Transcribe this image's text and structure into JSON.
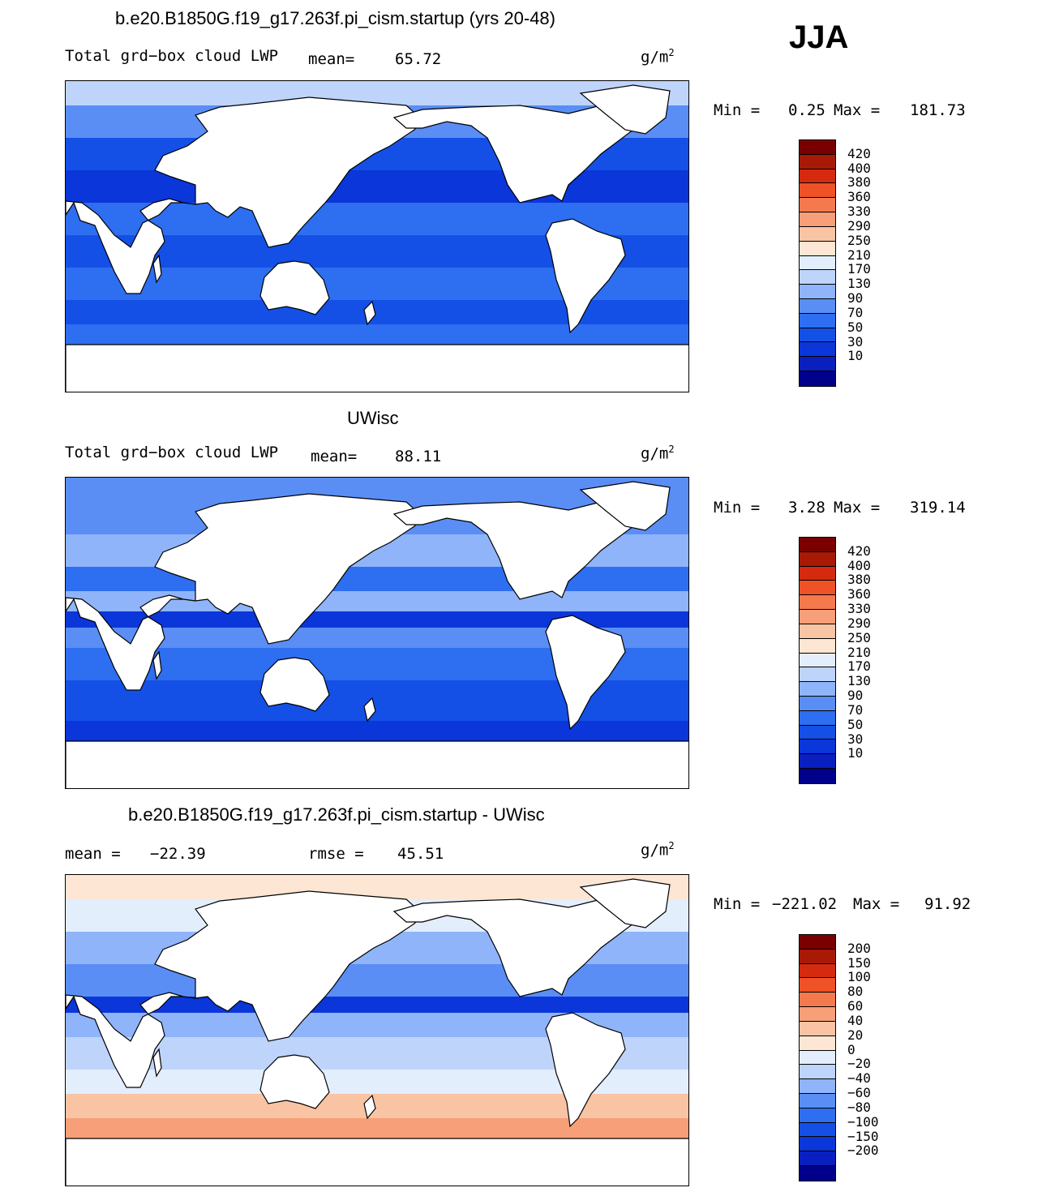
{
  "season": "JJA",
  "colors": {
    "land": "#ffffff",
    "coast": "#000000",
    "abs_scale": [
      "#00008b",
      "#0a1fbf",
      "#0b36d9",
      "#1450e6",
      "#2e6ef0",
      "#5a8ef5",
      "#8fb4fa",
      "#bed4fb",
      "#e3eefc",
      "#fde6d3",
      "#f9c4a4",
      "#f79f78",
      "#f47a4e",
      "#ee5226",
      "#d52a10",
      "#a81a06",
      "#7a0000"
    ],
    "diff_scale": [
      "#00008b",
      "#0a1fbf",
      "#0b36d9",
      "#1450e6",
      "#2e6ef0",
      "#5a8ef5",
      "#8fb4fa",
      "#bed4fb",
      "#e3eefc",
      "#fde6d3",
      "#f9c4a4",
      "#f79f78",
      "#f47a4e",
      "#ee5226",
      "#d52a10",
      "#a81a06",
      "#7a0000"
    ]
  },
  "panels": [
    {
      "title": "b.e20.B1850G.f19_g17.263f.pi_cism.startup (yrs 20-48)",
      "field": "Total grd−box cloud LWP",
      "mean_label": "mean=",
      "mean_value": "65.72",
      "units": "g/m",
      "units_sup": "2",
      "min_label": "Min =",
      "min_value": "0.25",
      "max_label": "Max =",
      "max_value": "181.73",
      "levels": [
        "420",
        "400",
        "380",
        "360",
        "330",
        "290",
        "250",
        "210",
        "170",
        "130",
        "90",
        "70",
        "50",
        "30",
        "10"
      ],
      "style": "model"
    },
    {
      "title": "UWisc",
      "field": "Total grd−box cloud LWP",
      "mean_label": "mean=",
      "mean_value": "88.11",
      "units": "g/m",
      "units_sup": "2",
      "min_label": "Min =",
      "min_value": "3.28",
      "max_label": "Max =",
      "max_value": "319.14",
      "levels": [
        "420",
        "400",
        "380",
        "360",
        "330",
        "290",
        "250",
        "210",
        "170",
        "130",
        "90",
        "70",
        "50",
        "30",
        "10"
      ],
      "style": "obs"
    },
    {
      "title": "b.e20.B1850G.f19_g17.263f.pi_cism.startup - UWisc",
      "mean_label": "mean =",
      "mean_value": "−22.39",
      "rmse_label": "rmse =",
      "rmse_value": "45.51",
      "units": "g/m",
      "units_sup": "2",
      "min_label": "Min =",
      "min_value": "−221.02",
      "max_label": "Max =",
      "max_value": "91.92",
      "levels": [
        "200",
        "150",
        "100",
        "80",
        "60",
        "40",
        "20",
        "0",
        "−20",
        "−40",
        "−60",
        "−80",
        "−100",
        "−150",
        "−200"
      ],
      "style": "diff"
    }
  ]
}
